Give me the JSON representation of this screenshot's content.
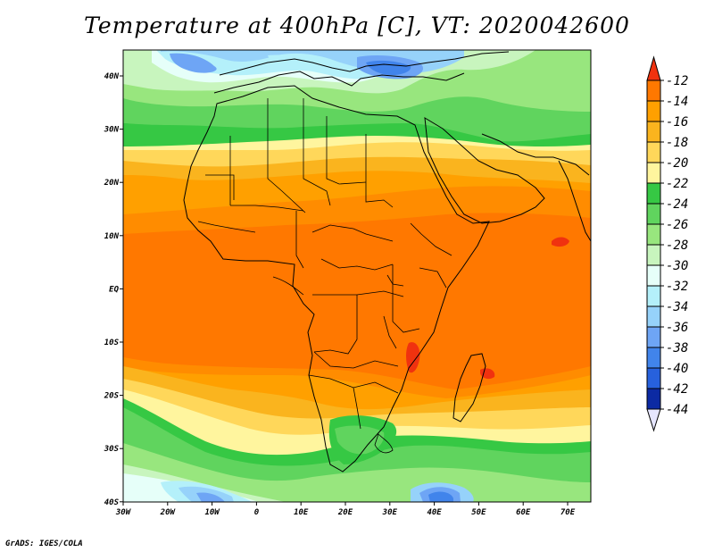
{
  "title": "Temperature at 400hPa [C], VT: 2020042600",
  "footer": "GrADS: IGES/COLA",
  "map": {
    "lon_labels": [
      "30W",
      "20W",
      "10W",
      "0",
      "10E",
      "20E",
      "30E",
      "40E",
      "50E",
      "60E",
      "70E"
    ],
    "lat_labels": [
      "40N",
      "30N",
      "20N",
      "10N",
      "EQ",
      "10S",
      "20S",
      "30S",
      "40S"
    ]
  },
  "colorbar": {
    "labels": [
      "-12",
      "-14",
      "-16",
      "-18",
      "-20",
      "-22",
      "-24",
      "-26",
      "-28",
      "-30",
      "-32",
      "-34",
      "-36",
      "-38",
      "-40",
      "-42",
      "-44"
    ],
    "colors": [
      "#f0320f",
      "#ff7800",
      "#ffa000",
      "#fab41e",
      "#ffd75a",
      "#fff59e",
      "#36c844",
      "#60d45e",
      "#98e67e",
      "#c8f5be",
      "#e6fff9",
      "#b4f0fa",
      "#96d2fa",
      "#6ea5f5",
      "#4184eb",
      "#2761dd",
      "#1a44c3",
      "#0c2aa3",
      "#0a157d"
    ],
    "top_arrow_color": "#f0320f",
    "bottom_arrow_color": "#e6e6ff"
  }
}
